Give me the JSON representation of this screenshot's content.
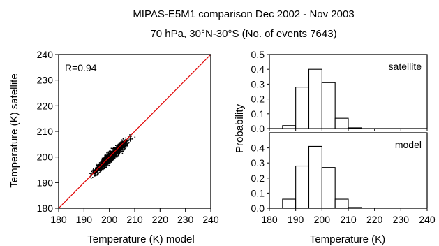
{
  "header": {
    "title_line1": "MIPAS-E5M1 comparison Dec 2002 - Nov 2003",
    "title_line2": "70 hPa, 30°N-30°S (No. of events 7643)"
  },
  "chart_data": [
    {
      "type": "scatter",
      "annotation": "R=0.94",
      "xlabel": "Temperature (K) model",
      "ylabel": "Temperature (K) satellite",
      "xlim": [
        180,
        240
      ],
      "ylim": [
        180,
        240
      ],
      "xticks": [
        "180",
        "190",
        "200",
        "210",
        "220",
        "230",
        "240"
      ],
      "yticks": [
        "180",
        "190",
        "200",
        "210",
        "220",
        "230",
        "240"
      ],
      "reference_line": {
        "from": [
          180,
          180
        ],
        "to": [
          240,
          240
        ],
        "color": "#e00000"
      },
      "cloud": {
        "count": 7643,
        "x_range": [
          188,
          213
        ],
        "y_range": [
          190,
          213
        ],
        "center": [
          200.5,
          200.5
        ],
        "color": "#000000"
      }
    },
    {
      "type": "bar",
      "panel": "satellite",
      "label": "satellite",
      "xlim": [
        180,
        240
      ],
      "ylim": [
        0,
        0.5
      ],
      "yticks": [
        "0.0",
        "0.1",
        "0.2",
        "0.3",
        "0.4",
        "0.5"
      ],
      "bins": [
        [
          180,
          185,
          0.0
        ],
        [
          185,
          190,
          0.02
        ],
        [
          190,
          195,
          0.28
        ],
        [
          195,
          200,
          0.4
        ],
        [
          200,
          205,
          0.31
        ],
        [
          205,
          210,
          0.07
        ],
        [
          210,
          215,
          0.005
        ],
        [
          215,
          220,
          0.0
        ],
        [
          220,
          225,
          0.0
        ],
        [
          225,
          230,
          0.0
        ],
        [
          230,
          235,
          0.0
        ],
        [
          235,
          240,
          0.0
        ]
      ]
    },
    {
      "type": "bar",
      "panel": "model",
      "label": "model",
      "xlim": [
        180,
        240
      ],
      "ylim": [
        0,
        0.5
      ],
      "yticks": [
        "0.0",
        "0.1",
        "0.2",
        "0.3",
        "0.4"
      ],
      "xticks": [
        "180",
        "190",
        "200",
        "210",
        "220",
        "230",
        "240"
      ],
      "xlabel": "Temperature (K)",
      "ylabel": "Probability",
      "bins": [
        [
          180,
          185,
          0.0
        ],
        [
          185,
          190,
          0.06
        ],
        [
          190,
          195,
          0.28
        ],
        [
          195,
          200,
          0.41
        ],
        [
          200,
          205,
          0.27
        ],
        [
          205,
          210,
          0.06
        ],
        [
          210,
          215,
          0.005
        ],
        [
          215,
          220,
          0.0
        ],
        [
          220,
          225,
          0.0
        ],
        [
          225,
          230,
          0.0
        ],
        [
          230,
          235,
          0.0
        ],
        [
          235,
          240,
          0.0
        ]
      ]
    }
  ]
}
